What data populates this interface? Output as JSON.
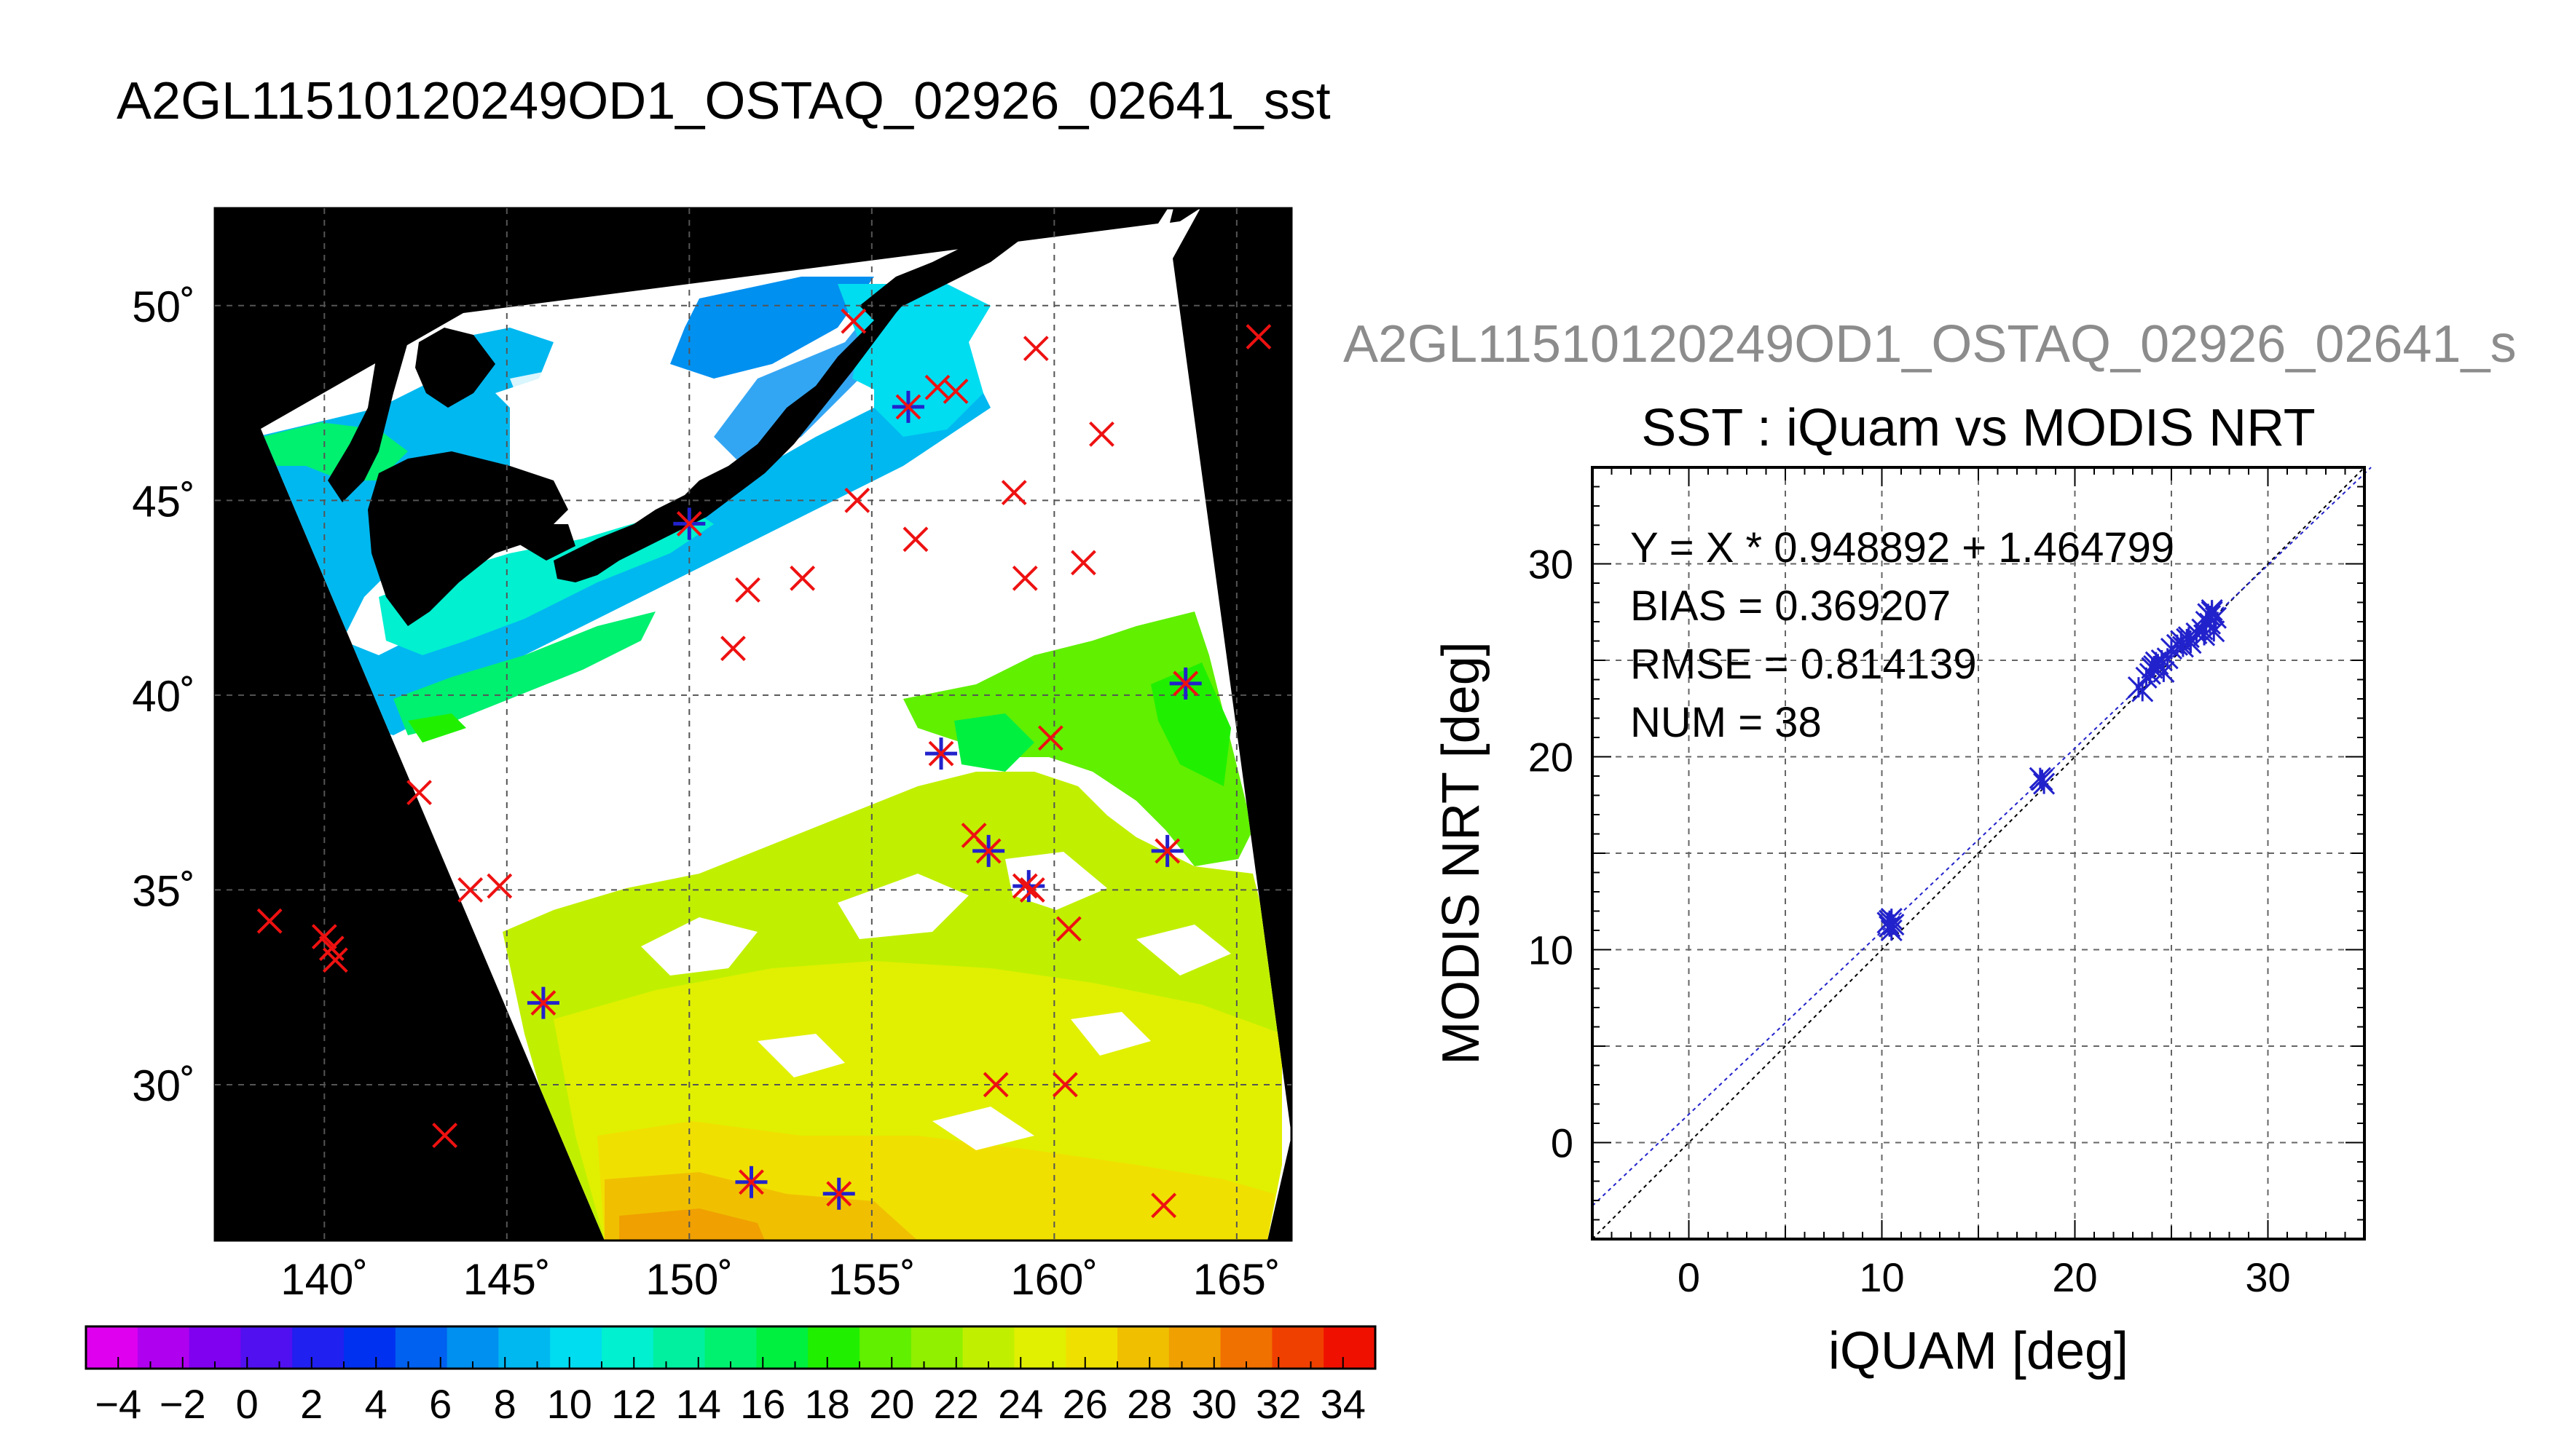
{
  "page": {
    "title": "A2GL11510120249OD1_OSTAQ_02926_02641_sst",
    "scatter_suptitle": "A2GL11510120249OD1_OSTAQ_02926_02641_s"
  },
  "map": {
    "lat_labels": [
      "50˚",
      "45˚",
      "40˚",
      "35˚",
      "30˚"
    ],
    "lon_labels": [
      "140˚",
      "145˚",
      "150˚",
      "155˚",
      "160˚",
      "165˚"
    ]
  },
  "colorbar": {
    "tick_labels": [
      "−4",
      "−2",
      "0",
      "2",
      "4",
      "6",
      "8",
      "10",
      "12",
      "14",
      "16",
      "18",
      "20",
      "22",
      "24",
      "26",
      "28",
      "30",
      "32",
      "34"
    ]
  },
  "chart_data": [
    {
      "type": "scatter",
      "title": "SST : iQuam vs MODIS NRT",
      "xlabel": "iQUAM [deg]",
      "ylabel": "MODIS NRT [deg]",
      "xlim": [
        -5,
        35
      ],
      "ylim": [
        -5,
        35
      ],
      "xticks": [
        "0",
        "10",
        "20",
        "30"
      ],
      "yticks": [
        "0",
        "10",
        "20",
        "30"
      ],
      "grid": true,
      "annotations": [
        "Y = X * 0.948892 + 1.464799",
        "BIAS = 0.369207",
        "RMSE = 0.814139",
        "NUM = 38"
      ],
      "fit": {
        "slope": 0.948892,
        "intercept": 1.464799,
        "color": "#2222cc"
      },
      "identity_line": {
        "color": "#000000"
      },
      "marker_color": "#2222cc",
      "points": [
        [
          10.4,
          11.2
        ],
        [
          10.5,
          11.6
        ],
        [
          10.6,
          11.3
        ],
        [
          10.5,
          11.0
        ],
        [
          10.4,
          11.5
        ],
        [
          18.3,
          18.8
        ],
        [
          18.4,
          18.6
        ],
        [
          23.3,
          23.6
        ],
        [
          23.5,
          23.4
        ],
        [
          23.7,
          24.1
        ],
        [
          24.0,
          24.6
        ],
        [
          24.2,
          24.9
        ],
        [
          24.5,
          25.0
        ],
        [
          24.8,
          25.1
        ],
        [
          24.3,
          24.8
        ],
        [
          25.0,
          25.6
        ],
        [
          25.3,
          25.8
        ],
        [
          25.5,
          26.0
        ],
        [
          25.8,
          26.1
        ],
        [
          26.0,
          25.9
        ],
        [
          26.3,
          26.4
        ],
        [
          26.6,
          26.6
        ],
        [
          26.8,
          27.0
        ],
        [
          27.0,
          27.3
        ],
        [
          27.1,
          27.6
        ],
        [
          27.2,
          26.5
        ],
        [
          27.0,
          26.9
        ],
        [
          26.9,
          27.4
        ],
        [
          25.6,
          25.7
        ],
        [
          24.6,
          24.4
        ],
        [
          23.9,
          24.3
        ],
        [
          27.3,
          27.2
        ],
        [
          26.7,
          26.3
        ],
        [
          25.9,
          26.2
        ],
        [
          24.1,
          24.7
        ],
        [
          10.3,
          11.4
        ],
        [
          18.2,
          18.9
        ],
        [
          27.1,
          27.5
        ]
      ]
    },
    {
      "type": "heatmap",
      "xlim": [
        137,
        166.5
      ],
      "ylim": [
        26,
        52.5
      ],
      "color_range": [
        -5,
        35
      ],
      "colorbar_colors": [
        "#e000f0",
        "#b000f0",
        "#8000f0",
        "#5010f0",
        "#2020f0",
        "#0030f0",
        "#0060f0",
        "#0090f0",
        "#00b8f0",
        "#00dcf0",
        "#00f0d0",
        "#00f0a0",
        "#00f070",
        "#00f040",
        "#20f000",
        "#60f000",
        "#90f000",
        "#c0f000",
        "#e0f000",
        "#f0e000",
        "#f0c000",
        "#f0a000",
        "#f07000",
        "#f04000",
        "#f01000"
      ],
      "red_markers": [
        [
          138.5,
          34.2
        ],
        [
          140.0,
          33.8
        ],
        [
          140.2,
          33.5
        ],
        [
          140.3,
          33.2
        ],
        [
          142.6,
          37.5
        ],
        [
          143.3,
          28.7
        ],
        [
          144.0,
          35.0
        ],
        [
          144.8,
          35.1
        ],
        [
          146.0,
          32.1
        ],
        [
          150.0,
          44.4
        ],
        [
          151.2,
          41.2
        ],
        [
          151.6,
          42.7
        ],
        [
          151.7,
          27.5
        ],
        [
          153.1,
          43.0
        ],
        [
          154.1,
          27.2
        ],
        [
          154.5,
          49.6
        ],
        [
          154.6,
          45.0
        ],
        [
          156.0,
          47.4
        ],
        [
          156.2,
          44.0
        ],
        [
          156.8,
          47.9
        ],
        [
          156.9,
          38.5
        ],
        [
          157.3,
          47.8
        ],
        [
          157.8,
          36.4
        ],
        [
          158.2,
          36.0
        ],
        [
          158.4,
          30.0
        ],
        [
          158.9,
          45.2
        ],
        [
          159.2,
          43.0
        ],
        [
          159.2,
          35.1
        ],
        [
          159.4,
          35.0
        ],
        [
          159.5,
          48.9
        ],
        [
          159.9,
          38.9
        ],
        [
          160.3,
          30.0
        ],
        [
          160.4,
          34.0
        ],
        [
          160.8,
          43.4
        ],
        [
          161.3,
          46.7
        ],
        [
          163.0,
          26.9
        ],
        [
          163.1,
          36.0
        ],
        [
          163.6,
          40.3
        ],
        [
          165.6,
          49.2
        ]
      ],
      "blue_markers": [
        [
          146.0,
          32.1
        ],
        [
          150.0,
          44.4
        ],
        [
          151.7,
          27.5
        ],
        [
          154.1,
          27.2
        ],
        [
          156.0,
          47.4
        ],
        [
          156.9,
          38.5
        ],
        [
          158.2,
          36.0
        ],
        [
          159.3,
          35.1
        ],
        [
          163.1,
          36.0
        ],
        [
          163.6,
          40.3
        ]
      ]
    }
  ]
}
